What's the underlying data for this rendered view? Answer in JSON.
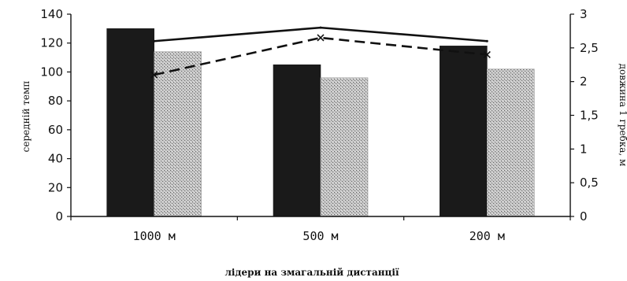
{
  "chart_data": {
    "type": "bar",
    "categories": [
      "1000 м",
      "500 м",
      "200 м"
    ],
    "series": [
      {
        "type": "bar",
        "axis": "left",
        "values": [
          130,
          105,
          118
        ],
        "color": "#1a1a1a"
      },
      {
        "type": "bar",
        "axis": "left",
        "values": [
          114,
          96,
          102
        ],
        "color": "#b8b8b8",
        "pattern": "stipple"
      },
      {
        "type": "line",
        "axis": "right",
        "values": [
          2.6,
          2.8,
          2.6
        ],
        "color": "#111111",
        "style": "solid"
      },
      {
        "type": "line",
        "axis": "right",
        "values": [
          2.1,
          2.65,
          2.4
        ],
        "color": "#111111",
        "style": "dashed",
        "marker": "x"
      }
    ],
    "xlabel": "лідери на змагальній дистанції",
    "ylabel": "середній темп",
    "y2label": "довжина 1 гребка, м",
    "ylim": [
      0,
      140
    ],
    "y2lim": [
      0,
      3
    ],
    "yticks": [
      0,
      20,
      40,
      60,
      80,
      100,
      120,
      140
    ],
    "y2ticks": [
      "0",
      "0,5",
      "1",
      "1,5",
      "2",
      "2,5",
      "3"
    ],
    "grid": false,
    "legend": "none"
  }
}
